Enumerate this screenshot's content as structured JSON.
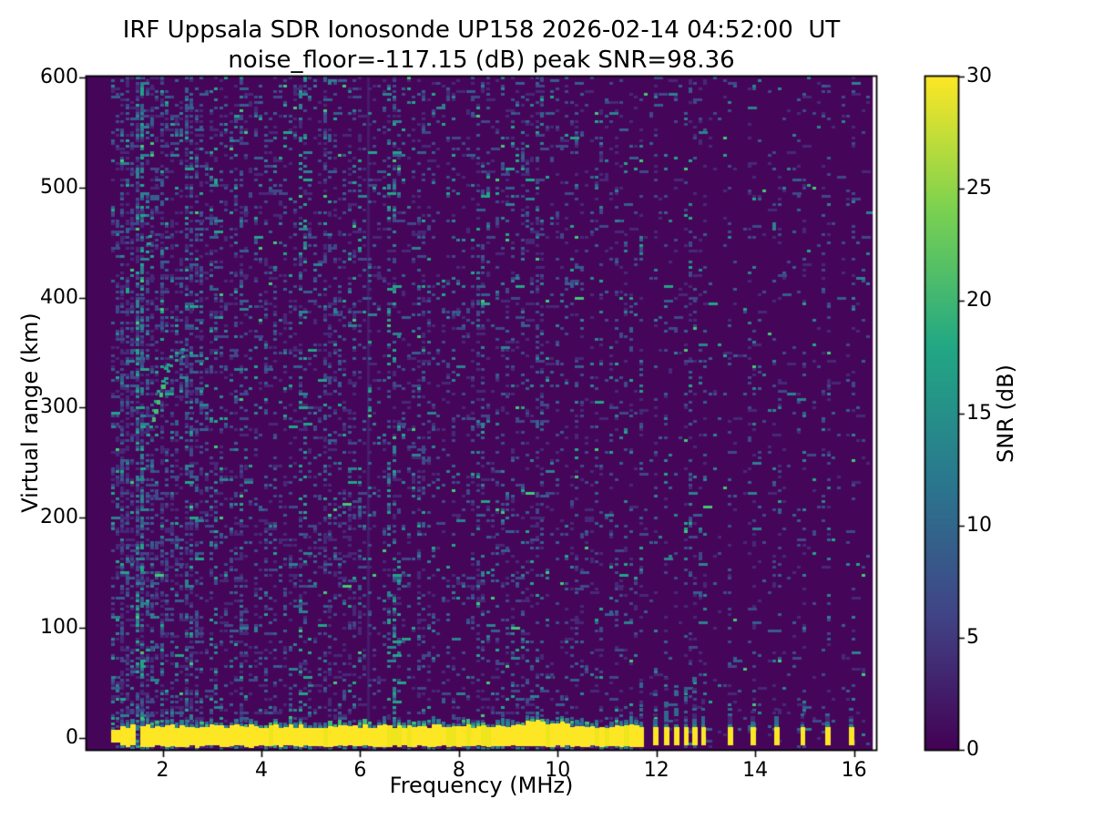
{
  "chart_data": {
    "type": "heatmap",
    "title": "IRF Uppsala SDR Ionosonde UP158 2026-02-14 04:52:00  UT",
    "subtitle": "noise_floor=-117.15 (dB) peak SNR=98.36",
    "xlabel": "Frequency (MHz)",
    "ylabel": "Virtual range (km)",
    "xlim": [
      0.46,
      16.45
    ],
    "ylim": [
      -11,
      601
    ],
    "xticks": [
      2,
      4,
      6,
      8,
      10,
      12,
      14,
      16
    ],
    "yticks": [
      0,
      100,
      200,
      300,
      400,
      500,
      600
    ],
    "grid": false,
    "colormap": "viridis",
    "colorbar": {
      "label": "SNR (dB)",
      "ticks": [
        0,
        5,
        10,
        15,
        20,
        25,
        30
      ],
      "vmin": 0,
      "vmax": 30,
      "position": "right",
      "stops": [
        "#440154",
        "#414487",
        "#2a788e",
        "#22a884",
        "#7ad151",
        "#fde725"
      ]
    },
    "values_summary": {
      "noise_floor_db": -117.15,
      "peak_snr_db": 98.36
    },
    "data_extent": {
      "f_min_mhz": 0.95,
      "f_max_mhz": 16.38,
      "f_bin_mhz": 0.1,
      "range_bin_km": 2.5
    },
    "features": {
      "ground_pulse_band": {
        "f_start_mhz": 0.95,
        "f_end_mhz": 11.65,
        "km_top": 11,
        "km_bottom": -7,
        "gap_mhz": [
          1.38,
          1.48
        ],
        "bulge_mhz": [
          9.3,
          10.2
        ],
        "snr_db": 30
      },
      "discrete_pulses_mhz": [
        11.7,
        11.99,
        12.21,
        12.41,
        12.6,
        12.78,
        12.95,
        13.5,
        13.96,
        14.44,
        14.97,
        15.47,
        15.95
      ],
      "ionospheric_echo_trace_mhz_km": [
        [
          1.72,
          276
        ],
        [
          1.78,
          284
        ],
        [
          1.83,
          291
        ],
        [
          1.88,
          299
        ],
        [
          1.93,
          307
        ],
        [
          1.98,
          314
        ],
        [
          2.03,
          321
        ],
        [
          2.08,
          328
        ],
        [
          2.13,
          334
        ],
        [
          2.18,
          339
        ],
        [
          2.3,
          344
        ],
        [
          2.42,
          348
        ]
      ],
      "second_hop_hint_mhz_km": [
        [
          1.7,
          443
        ],
        [
          1.73,
          450
        ],
        [
          1.76,
          457
        ]
      ],
      "noisy_columns_mhz": [
        {
          "f_mhz": 1.55,
          "boost": 0.3
        },
        {
          "f_mhz": 2.05,
          "boost": 0.15
        },
        {
          "f_mhz": 2.5,
          "boost": 0.15
        },
        {
          "f_mhz": 3.05,
          "boost": 0.2
        },
        {
          "f_mhz": 3.6,
          "boost": 0.1
        },
        {
          "f_mhz": 4.85,
          "boost": 0.25
        },
        {
          "f_mhz": 5.35,
          "boost": 0.15
        },
        {
          "f_mhz": 6.15,
          "boost": 0.1,
          "style": "line"
        },
        {
          "f_mhz": 6.65,
          "boost": 0.28
        },
        {
          "f_mhz": 7.25,
          "boost": 0.1
        },
        {
          "f_mhz": 8.4,
          "boost": 0.08
        },
        {
          "f_mhz": 9.05,
          "boost": 0.1
        },
        {
          "f_mhz": 9.7,
          "boost": 0.16
        },
        {
          "f_mhz": 10.45,
          "boost": 0.1
        },
        {
          "f_mhz": 11.2,
          "boost": 0.08
        }
      ],
      "noise_density_base_by_mhz": [
        [
          1.8,
          0.42
        ],
        [
          3,
          0.28
        ],
        [
          6,
          0.22
        ],
        [
          8,
          0.18
        ],
        [
          10,
          0.15
        ],
        [
          11.65,
          0.13
        ],
        [
          16.45,
          0.045
        ]
      ]
    }
  },
  "colors": {
    "figure_background": "#ffffff",
    "plot_background_low": "#45065a",
    "text": "#000000",
    "frame": "#000000",
    "band_yellow": "#fde725",
    "band_yellow_alt": "#eee51c",
    "fringe_teal": "#27808e",
    "fringe_green": "#3dbc74",
    "pulse_blue": "#31688e",
    "dim_violet": "#472878",
    "echo_teal": "#25a584",
    "echo_green": "#44c06e",
    "speckle_palette": [
      {
        "c": "#472878",
        "w": 0.38
      },
      {
        "c": "#3f4889",
        "w": 0.3
      },
      {
        "c": "#355e8d",
        "w": 0.16
      },
      {
        "c": "#2c818e",
        "w": 0.1
      },
      {
        "c": "#21a585",
        "w": 0.045
      },
      {
        "c": "#42c873",
        "w": 0.015
      }
    ]
  }
}
